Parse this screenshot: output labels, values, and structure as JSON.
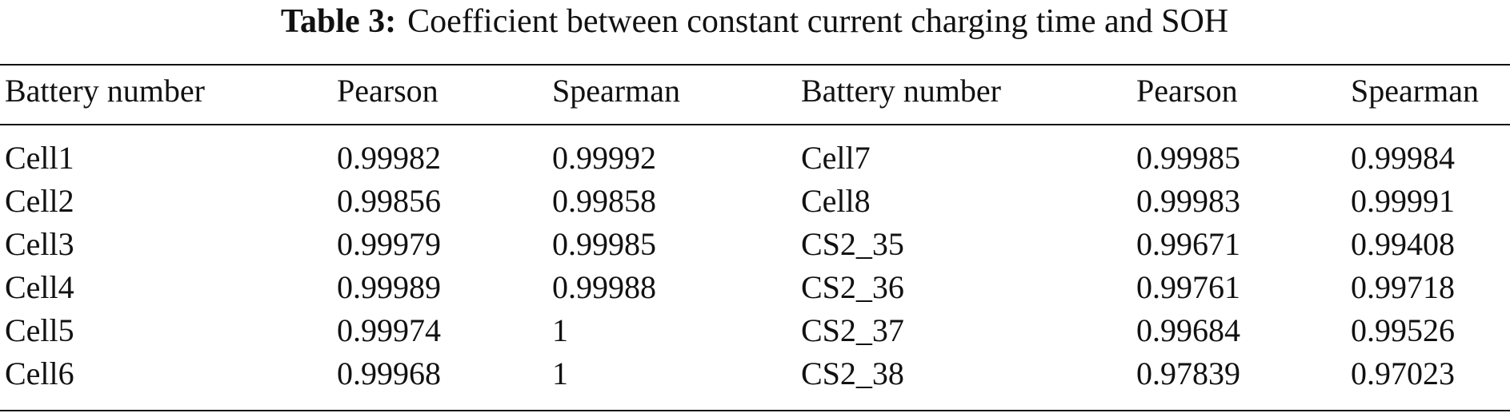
{
  "title": {
    "label": "Table 3:",
    "text": "Coefficient between constant current charging time and SOH"
  },
  "table": {
    "header": [
      "Battery number",
      "Pearson",
      "Spearman",
      "Battery number",
      "Pearson",
      "Spearman"
    ],
    "rows": [
      [
        "Cell1",
        "0.99982",
        "0.99992",
        "Cell7",
        "0.99985",
        "0.99984"
      ],
      [
        "Cell2",
        "0.99856",
        "0.99858",
        "Cell8",
        "0.99983",
        "0.99991"
      ],
      [
        "Cell3",
        "0.99979",
        "0.99985",
        "CS2_35",
        "0.99671",
        "0.99408"
      ],
      [
        "Cell4",
        "0.99989",
        "0.99988",
        "CS2_36",
        "0.99761",
        "0.99718"
      ],
      [
        "Cell5",
        "0.99974",
        "1",
        "CS2_37",
        "0.99684",
        "0.99526"
      ],
      [
        "Cell6",
        "0.99968",
        "1",
        "CS2_38",
        "0.97839",
        "0.97023"
      ]
    ]
  }
}
